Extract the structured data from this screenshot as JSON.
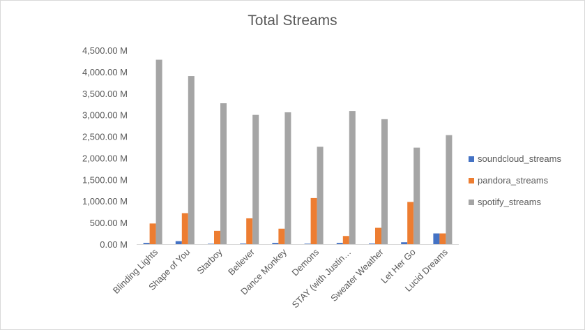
{
  "chart_data": {
    "type": "bar",
    "title": "Total Streams",
    "xlabel": "",
    "ylabel": "",
    "ylim": [
      0,
      4500
    ],
    "y_ticks": [
      "0.00 M",
      "500.00 M",
      "1,000.00 M",
      "1,500.00 M",
      "2,000.00 M",
      "2,500.00 M",
      "3,000.00 M",
      "3,500.00 M",
      "4,000.00 M",
      "4,500.00 M"
    ],
    "categories": [
      "Blinding Lights",
      "Shape of You",
      "Starboy",
      "Believer",
      "Dance Monkey",
      "Demons",
      "STAY (with Justin…",
      "Sweater Weather",
      "Let Her Go",
      "Lucid Dreams"
    ],
    "series": [
      {
        "name": "soundcloud_streams",
        "color": "#4472c4",
        "values": [
          30,
          70,
          10,
          15,
          30,
          12,
          30,
          15,
          45,
          250
        ]
      },
      {
        "name": "pandora_streams",
        "color": "#ed7d31",
        "values": [
          480,
          720,
          310,
          600,
          360,
          1070,
          190,
          380,
          980,
          250
        ]
      },
      {
        "name": "spotify_streams",
        "color": "#a5a5a5",
        "values": [
          4280,
          3900,
          3270,
          3000,
          3060,
          2260,
          3090,
          2900,
          2240,
          2530
        ]
      }
    ],
    "grid": false,
    "legend_position": "right"
  }
}
